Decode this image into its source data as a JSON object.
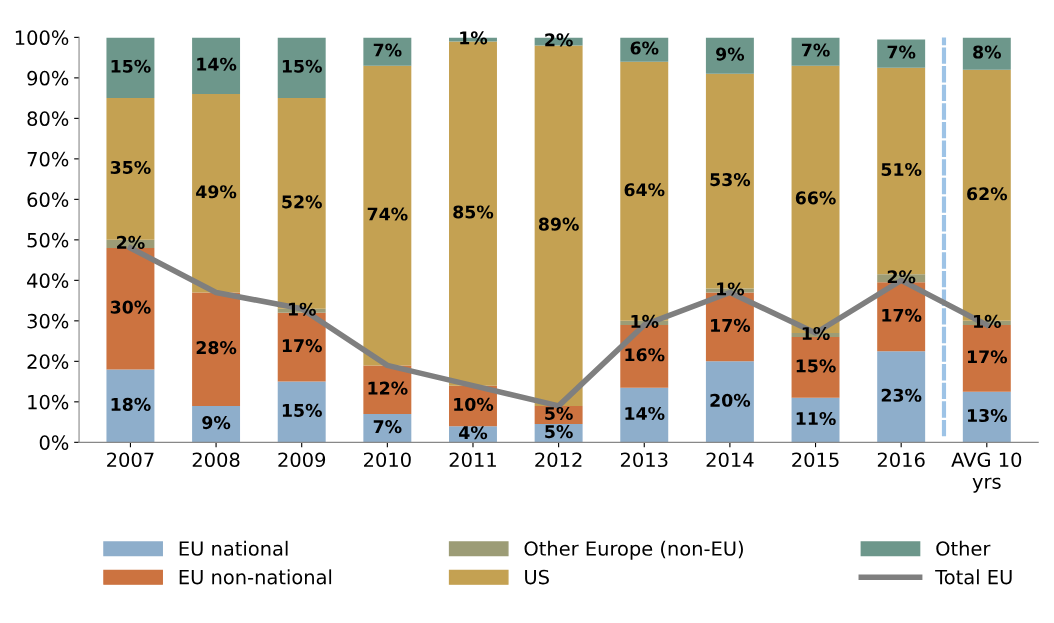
{
  "chart_data": {
    "type": "bar",
    "stacked": true,
    "categories": [
      "2007",
      "2008",
      "2009",
      "2010",
      "2011",
      "2012",
      "2013",
      "2014",
      "2015",
      "2016",
      "AVG 10\nyrs"
    ],
    "series": [
      {
        "name": "EU national",
        "color": "#8eaecb",
        "values": [
          18,
          9,
          15,
          7,
          4,
          4.5,
          13.5,
          20,
          11,
          22.5,
          12.5
        ],
        "value_labels": [
          "18%",
          "9%",
          "15%",
          "7%",
          "4%",
          "5%",
          "14%",
          "20%",
          "11%",
          "23%",
          "13%"
        ]
      },
      {
        "name": "EU non-national",
        "color": "#cc7340",
        "values": [
          30,
          28,
          17,
          12,
          10,
          4.5,
          15.5,
          17,
          15,
          17,
          16.5
        ],
        "value_labels": [
          "30%",
          "28%",
          "17%",
          "12%",
          "10%",
          "5%",
          "16%",
          "17%",
          "15%",
          "17%",
          "17%"
        ]
      },
      {
        "name": "Other Europe (non-EU)",
        "color": "#9c9c76",
        "values": [
          2,
          0,
          1,
          0,
          0,
          0,
          1,
          1,
          1,
          2,
          1
        ],
        "value_labels": [
          "2%",
          null,
          "1%",
          null,
          null,
          null,
          "1%",
          "1%",
          "1%",
          "2%",
          "1%"
        ]
      },
      {
        "name": "US",
        "color": "#c4a152",
        "values": [
          35,
          49,
          52,
          74,
          85,
          89,
          64,
          53,
          66,
          51,
          62
        ],
        "value_labels": [
          "35%",
          "49%",
          "52%",
          "74%",
          "85%",
          "89%",
          "64%",
          "53%",
          "66%",
          "51%",
          "62%"
        ]
      },
      {
        "name": "Other",
        "color": "#6d978b",
        "values": [
          15,
          14,
          15,
          7,
          1,
          2,
          6,
          9,
          7,
          7,
          8
        ],
        "value_labels": [
          "15%",
          "14%",
          "15%",
          "7%",
          "1%",
          "2%",
          "6%",
          "9%",
          "7%",
          "7%",
          "8%"
        ]
      },
      {
        "name": "Total EU",
        "type": "line",
        "color": "#7f7f7f",
        "values": [
          48,
          37,
          33,
          19,
          14,
          9,
          29,
          37,
          27,
          40,
          29
        ]
      }
    ],
    "ylim": [
      0,
      100
    ],
    "yticks": [
      {
        "value": 0,
        "label": "0%"
      },
      {
        "value": 10,
        "label": "10%"
      },
      {
        "value": 20,
        "label": "20%"
      },
      {
        "value": 30,
        "label": "30%"
      },
      {
        "value": 40,
        "label": "40%"
      },
      {
        "value": 50,
        "label": "50%"
      },
      {
        "value": 60,
        "label": "60%"
      },
      {
        "value": 70,
        "label": "70%"
      },
      {
        "value": 80,
        "label": "80%"
      },
      {
        "value": 90,
        "label": "90%"
      },
      {
        "value": 100,
        "label": "100%"
      }
    ],
    "grid": false,
    "legend": "bottom",
    "marker": "none"
  }
}
